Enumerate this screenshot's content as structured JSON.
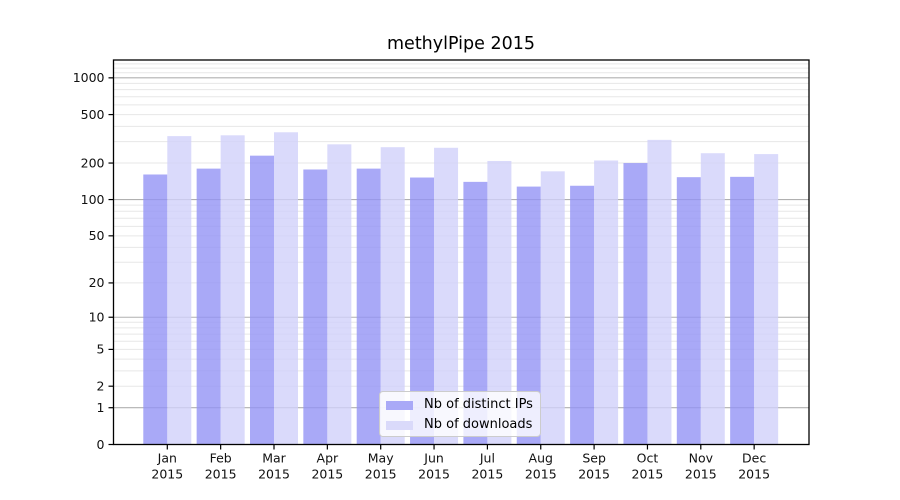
{
  "page": {
    "title": "methylPipe 2015"
  },
  "chart_data": {
    "type": "bar",
    "title": "methylPipe 2015",
    "y_scale": "log1p",
    "ylim": [
      0,
      1400
    ],
    "y_ticks": [
      1000,
      500,
      200,
      100,
      50,
      20,
      10,
      5,
      2,
      1,
      0
    ],
    "grid": "horizontal, gray majors at powers of 10 + faint log minors",
    "legend_position": "lower center inside plot",
    "x_months": [
      "Jan",
      "Feb",
      "Mar",
      "Apr",
      "May",
      "Jun",
      "Jul",
      "Aug",
      "Sep",
      "Oct",
      "Nov",
      "Dec"
    ],
    "x_year": "2015",
    "series": [
      {
        "name": "Nb of distinct IPs",
        "color": "#a9a9f7",
        "fill": "rgba(147,147,245,0.8)",
        "values": [
          161,
          180,
          230,
          177,
          180,
          152,
          140,
          128,
          130,
          200,
          153,
          154
        ]
      },
      {
        "name": "Nb of downloads",
        "color": "#dadafa",
        "fill": "rgba(209,209,250,0.8)",
        "values": [
          333,
          338,
          358,
          285,
          270,
          267,
          208,
          171,
          210,
          310,
          241,
          237
        ]
      }
    ],
    "colors": {
      "axis": "#000000",
      "grid_major": "#b0b0b0",
      "grid_minor": "#e7e7e7",
      "tick_text": "#111111"
    }
  }
}
